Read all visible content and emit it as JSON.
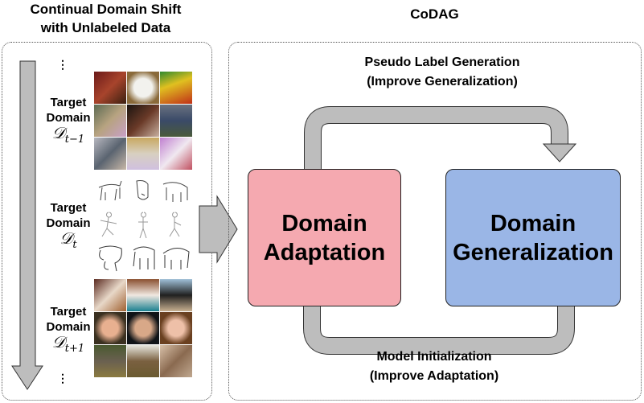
{
  "left_panel": {
    "title_line1": "Continual Domain Shift",
    "title_line2": "with Unlabeled Data",
    "ellipsis": "⋮",
    "domains": [
      {
        "label_line1": "Target",
        "label_line2": "Domain",
        "symbol": "𝒟",
        "subscript": "t−1"
      },
      {
        "label_line1": "Target",
        "label_line2": "Domain",
        "symbol": "𝒟",
        "subscript": "t"
      },
      {
        "label_line1": "Target",
        "label_line2": "Domain",
        "symbol": "𝒟",
        "subscript": "t+1"
      }
    ]
  },
  "right_panel": {
    "title": "CoDAG",
    "top_arrow_line1": "Pseudo Label Generation",
    "top_arrow_line2": "(Improve Generalization)",
    "bottom_arrow_line1": "Model Initialization",
    "bottom_arrow_line2": "(Improve Adaptation)",
    "adaptation_box": {
      "line1": "Domain",
      "line2": "Adaptation",
      "color": "#f5a9b0"
    },
    "generalization_box": {
      "line1": "Domain",
      "line2": "Generalization",
      "color": "#9ab6e6"
    }
  },
  "colors": {
    "arrow_fill": "#bdbdbd",
    "arrow_stroke": "#333333"
  }
}
